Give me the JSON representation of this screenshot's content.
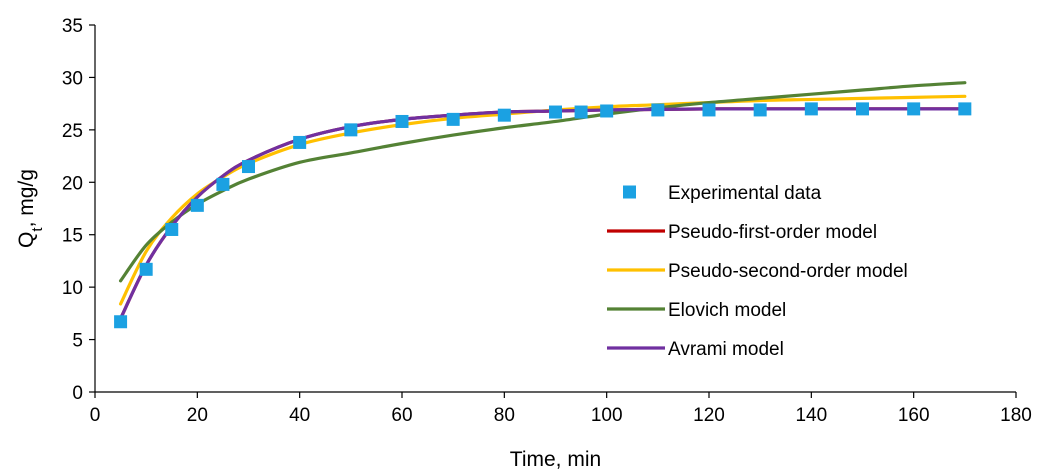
{
  "chart_data": {
    "type": "scatter",
    "title": "",
    "xlabel": "Time, min",
    "ylabel": "Q",
    "ylabel_sub": "t",
    "ylabel_suffix": ", mg/g",
    "xlim": [
      0,
      180
    ],
    "ylim": [
      0,
      35
    ],
    "xticks": [
      0,
      20,
      40,
      60,
      80,
      100,
      120,
      140,
      160,
      180
    ],
    "yticks": [
      0,
      5,
      10,
      15,
      20,
      25,
      30,
      35
    ],
    "grid": false,
    "legend_position": "center-right",
    "series": [
      {
        "name": "Experimental data",
        "kind": "marker",
        "color": "#1BA1E2",
        "x": [
          5,
          10,
          15,
          20,
          25,
          30,
          40,
          50,
          60,
          70,
          80,
          90,
          95,
          100,
          110,
          120,
          130,
          140,
          150,
          160,
          170
        ],
        "y": [
          6.7,
          11.7,
          15.5,
          17.8,
          19.8,
          21.5,
          23.8,
          25.0,
          25.8,
          26.0,
          26.4,
          26.7,
          26.7,
          26.8,
          26.9,
          26.9,
          26.9,
          27.0,
          27.0,
          27.0,
          27.0
        ]
      },
      {
        "name": "Pseudo-first-order model",
        "kind": "line",
        "color": "#C00000",
        "x": [
          5,
          10,
          15,
          20,
          25,
          30,
          40,
          50,
          60,
          70,
          80,
          90,
          100,
          110,
          120,
          130,
          140,
          150,
          160,
          170
        ],
        "y": [
          7.0,
          12.1,
          15.8,
          18.6,
          20.6,
          22.1,
          24.1,
          25.3,
          26.0,
          26.4,
          26.7,
          26.8,
          26.9,
          26.95,
          27.0,
          27.0,
          27.0,
          27.0,
          27.0,
          27.0
        ]
      },
      {
        "name": "Pseudo-second-order model",
        "kind": "line",
        "color": "#FFC000",
        "x": [
          5,
          10,
          15,
          20,
          25,
          30,
          40,
          50,
          60,
          70,
          80,
          90,
          100,
          110,
          120,
          130,
          140,
          150,
          160,
          170
        ],
        "y": [
          8.4,
          13.4,
          16.6,
          18.9,
          20.5,
          21.8,
          23.6,
          24.7,
          25.5,
          26.1,
          26.5,
          26.9,
          27.2,
          27.4,
          27.6,
          27.8,
          27.9,
          28.0,
          28.1,
          28.2
        ]
      },
      {
        "name": "Elovich model",
        "kind": "line",
        "color": "#548235",
        "x": [
          5,
          10,
          15,
          20,
          25,
          30,
          40,
          50,
          60,
          70,
          80,
          90,
          100,
          110,
          120,
          130,
          140,
          150,
          160,
          170
        ],
        "y": [
          10.6,
          14.0,
          16.2,
          17.9,
          19.2,
          20.3,
          21.9,
          22.8,
          23.7,
          24.5,
          25.2,
          25.8,
          26.5,
          27.1,
          27.6,
          28.0,
          28.4,
          28.8,
          29.2,
          29.5
        ]
      },
      {
        "name": "Avrami model",
        "kind": "line",
        "color": "#7030A0",
        "x": [
          5,
          10,
          15,
          20,
          25,
          30,
          40,
          50,
          60,
          70,
          80,
          90,
          100,
          110,
          120,
          130,
          140,
          150,
          160,
          170
        ],
        "y": [
          7.0,
          12.1,
          15.8,
          18.6,
          20.6,
          22.1,
          24.1,
          25.3,
          26.0,
          26.4,
          26.7,
          26.8,
          26.9,
          26.95,
          27.0,
          27.0,
          27.0,
          27.0,
          27.0,
          27.0
        ]
      }
    ]
  }
}
